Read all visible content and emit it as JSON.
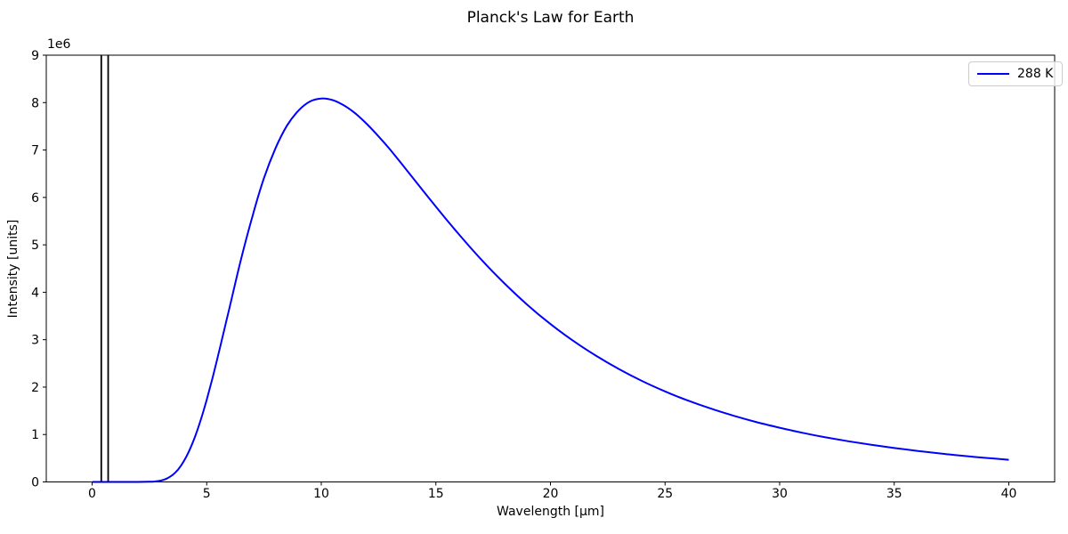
{
  "chart_data": {
    "type": "line",
    "title": "Planck's Law for Earth",
    "xlabel": "Wavelength [μm]",
    "ylabel": "Intensity [units]",
    "y_offset_text": "1e6",
    "xlim": [
      -2,
      42
    ],
    "ylim": [
      0,
      9000000
    ],
    "xticks": [
      0,
      5,
      10,
      15,
      20,
      25,
      30,
      35,
      40
    ],
    "yticks_e6": [
      0,
      1,
      2,
      3,
      4,
      5,
      6,
      7,
      8,
      9
    ],
    "grid": false,
    "background_color": "#ffffff",
    "spine_color": "#000000",
    "text_color": "#000000",
    "legend": {
      "position": "upper right",
      "entries": [
        {
          "label": "288 K",
          "color": "#0000ff"
        }
      ]
    },
    "vlines": {
      "x_um": [
        0.4,
        0.7
      ],
      "color": "#000000",
      "note": "visible-band-markers"
    },
    "series": [
      {
        "name": "288 K",
        "color": "#0000ff",
        "temperature_K": 288,
        "peak": {
          "x_um": 10.1,
          "y_e6": 8.09
        },
        "x_um": [
          0.01,
          1,
          2,
          2.5,
          2.75,
          3,
          3.25,
          3.5,
          3.75,
          4,
          4.25,
          4.5,
          4.75,
          5,
          5.25,
          5.5,
          5.75,
          6,
          6.5,
          7,
          7.5,
          8,
          8.5,
          9,
          9.5,
          10,
          10.5,
          11,
          11.5,
          12,
          12.5,
          13,
          13.5,
          14,
          15,
          16,
          17,
          18,
          19,
          20,
          21,
          22,
          23,
          24,
          25,
          26,
          27,
          28,
          29,
          30,
          31,
          32,
          33,
          34,
          35,
          36,
          37,
          38,
          39,
          40
        ],
        "y_e6": [
          0,
          0,
          0,
          0.003,
          0.01,
          0.028,
          0.069,
          0.142,
          0.261,
          0.435,
          0.671,
          0.967,
          1.324,
          1.734,
          2.185,
          2.67,
          3.18,
          3.683,
          4.702,
          5.611,
          6.407,
          7.034,
          7.513,
          7.83,
          8.022,
          8.086,
          8.052,
          7.938,
          7.767,
          7.543,
          7.287,
          7.011,
          6.713,
          6.41,
          5.805,
          5.225,
          4.679,
          4.183,
          3.732,
          3.329,
          2.973,
          2.657,
          2.376,
          2.128,
          1.909,
          1.716,
          1.546,
          1.395,
          1.26,
          1.143,
          1.036,
          0.941,
          0.858,
          0.783,
          0.716,
          0.655,
          0.6,
          0.551,
          0.507,
          0.468
        ]
      }
    ]
  }
}
